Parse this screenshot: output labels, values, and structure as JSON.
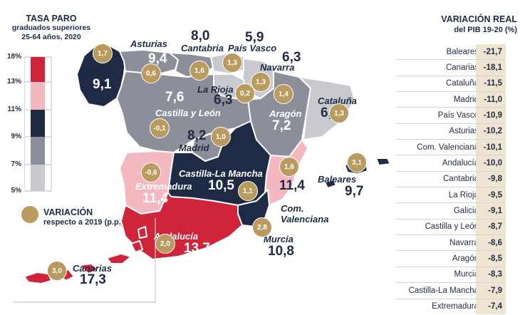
{
  "legend": {
    "title": "TASA PARO",
    "subtitle_line1": "graduados superiores",
    "subtitle_line2": "25-64 años, 2020",
    "ticks": [
      "18%",
      "13%",
      "11%",
      "9%",
      "7%",
      "5%"
    ],
    "colors": [
      "#d0243a",
      "#f4b8c0",
      "#1f2a44",
      "#8c8f9a",
      "#c9cad0"
    ],
    "variation_title": "VARIACIÓN",
    "variation_subtitle": "respecto a 2019 (p.p.)",
    "variation_color": "#b99a5f"
  },
  "table": {
    "title_line1": "VARIACIÓN REAL",
    "title_line2": "del PIB 19-20 (%)",
    "rows": [
      {
        "region": "Baleares",
        "value": "-21,7"
      },
      {
        "region": "Canarias",
        "value": "-18,1"
      },
      {
        "region": "Cataluña",
        "value": "-11,5"
      },
      {
        "region": "Madrid",
        "value": "-11,0"
      },
      {
        "region": "País Vasco",
        "value": "-10,9"
      },
      {
        "region": "Asturias",
        "value": "-10,2"
      },
      {
        "region": "Com. Valenciana",
        "value": "-10,1"
      },
      {
        "region": "Andalucía",
        "value": "-10,0"
      },
      {
        "region": "Cantabria",
        "value": "-9,8"
      },
      {
        "region": "La Rioja",
        "value": "-9,5"
      },
      {
        "region": "Galicia",
        "value": "-9,1"
      },
      {
        "region": "Castilla y León",
        "value": "-8,7"
      },
      {
        "region": "Navarra",
        "value": "-8,6"
      },
      {
        "region": "Aragón",
        "value": "-8,5"
      },
      {
        "region": "Murcia",
        "value": "-8,3"
      },
      {
        "region": "Castilla-La Mancha",
        "value": "-7,9"
      },
      {
        "region": "Extremadura",
        "value": "-7,4"
      }
    ]
  },
  "regions": {
    "galicia": {
      "name": "Galicia",
      "rate": "9,1",
      "variation": "1,7"
    },
    "asturias": {
      "name": "Asturias",
      "rate": "9,4",
      "variation": "0,6"
    },
    "cantabria": {
      "name": "Cantabria",
      "rate": "8,0",
      "variation": "1,6"
    },
    "paisvasco": {
      "name": "País Vasco",
      "rate": "5,9",
      "variation": "1,3"
    },
    "navarra": {
      "name": "Navarra",
      "rate": "6,3",
      "variation": "1,3"
    },
    "larioja": {
      "name": "La Rioja",
      "rate": "6,3",
      "variation": "0,2"
    },
    "aragon": {
      "name": "Aragón",
      "rate": "7,2",
      "variation": "1,4"
    },
    "cataluna": {
      "name": "Cataluña",
      "rate": "6,9",
      "variation": "1,3"
    },
    "castillaleon": {
      "name": "Castilla y León",
      "rate": "7,6",
      "variation": "-0,1"
    },
    "madrid": {
      "name": "Madrid",
      "rate": "8,2",
      "variation": "1,0"
    },
    "extremadura": {
      "name": "Extremadura",
      "rate": "11,4",
      "variation": "-0,6"
    },
    "castillamancha": {
      "name": "Castilla-La Mancha",
      "rate": "10,5",
      "variation": "1,1"
    },
    "valenciana": {
      "name": "Com. Valenciana",
      "name_line1": "Com.",
      "name_line2": "Valenciana",
      "rate": "11,4",
      "variation": "1,6"
    },
    "baleares": {
      "name": "Baleares",
      "rate": "9,7",
      "variation": "3,1"
    },
    "andalucia": {
      "name": "Andalucía",
      "rate": "13,7",
      "variation": "2,0"
    },
    "murcia": {
      "name": "Murcia",
      "rate": "10,8",
      "variation": "2,8"
    },
    "canarias": {
      "name": "Canarias",
      "rate": "17,3",
      "variation": "3,0"
    }
  },
  "colors": {
    "band_18_13": "#d0243a",
    "band_13_11": "#f4b8c0",
    "band_11_9": "#1f2a44",
    "band_9_7": "#8c8f9a",
    "band_7_5": "#c9cad0"
  }
}
